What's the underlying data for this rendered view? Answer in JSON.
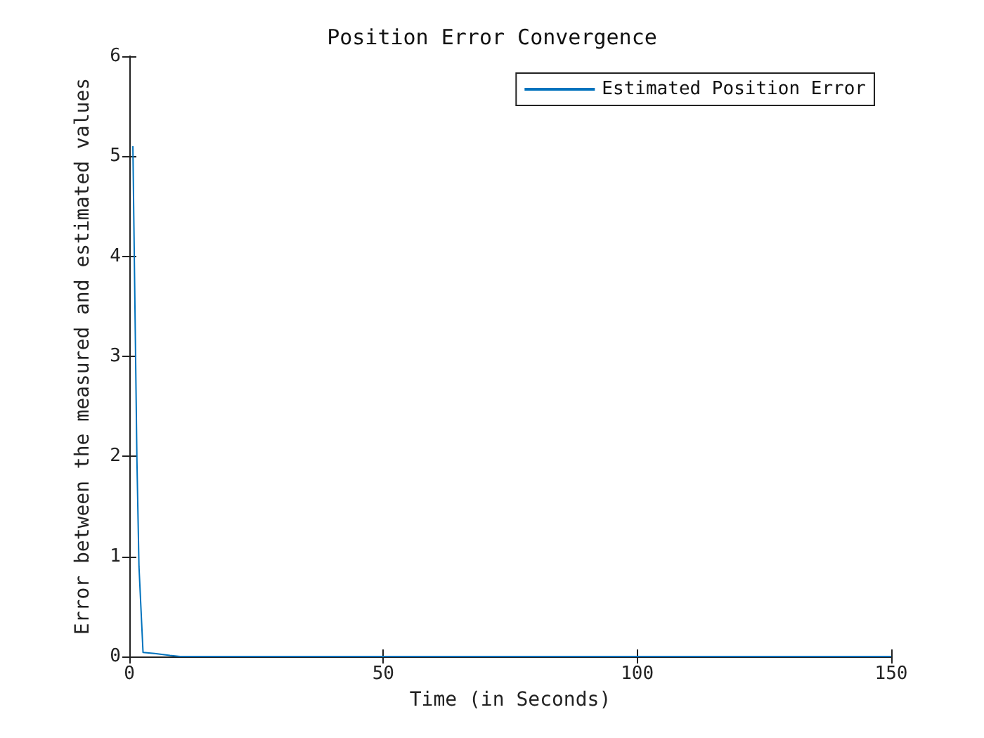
{
  "chart_data": {
    "type": "line",
    "title": "Position Error Convergence",
    "xlabel": "Time (in Seconds)",
    "ylabel": "Error between the measured and estimated values",
    "x": [
      0.7,
      1.5,
      1.9,
      2.7,
      5,
      8,
      10,
      50,
      100,
      150
    ],
    "series": [
      {
        "name": "Estimated Position Error",
        "color": "#0072bd",
        "values": [
          5.1,
          1.95,
          0.9,
          0.04,
          0.03,
          0.01,
          0,
          0,
          0,
          0
        ]
      }
    ],
    "xlim": [
      0,
      150
    ],
    "xticks": [
      0,
      50,
      100,
      150
    ],
    "ylim": [
      0,
      6
    ],
    "yticks": [
      0,
      1,
      2,
      3,
      4,
      5,
      6
    ],
    "grid": false,
    "legend": "top right",
    "marker": "none",
    "line_style": "solid"
  }
}
